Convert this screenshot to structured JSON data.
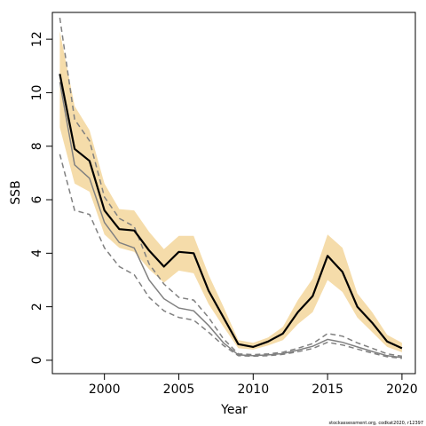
{
  "chart_data": {
    "type": "line",
    "xlabel": "Year",
    "ylabel": "SSB",
    "xlim": [
      1996.5,
      2020.9
    ],
    "ylim": [
      -0.5,
      13.0
    ],
    "x_ticks": [
      2000,
      2005,
      2010,
      2015,
      2020
    ],
    "y_ticks": [
      0,
      2,
      4,
      6,
      8,
      10,
      12
    ],
    "legend": "none",
    "grid": false,
    "credit": "stockassessment.org, codkat2020, r12397",
    "x": [
      1997,
      1998,
      1999,
      2000,
      2001,
      2002,
      2003,
      2004,
      2005,
      2006,
      2007,
      2008,
      2009,
      2010,
      2011,
      2012,
      2013,
      2014,
      2015,
      2016,
      2017,
      2018,
      2019,
      2020
    ],
    "series": [
      {
        "role": "estimate",
        "values": [
          10.7,
          7.9,
          7.45,
          5.6,
          4.9,
          4.85,
          4.1,
          3.5,
          4.05,
          4.0,
          2.6,
          1.6,
          0.6,
          0.5,
          0.7,
          1.0,
          1.8,
          2.4,
          3.9,
          3.3,
          2.0,
          1.4,
          0.7,
          0.45
        ],
        "lower": [
          8.7,
          6.6,
          6.3,
          4.7,
          4.2,
          4.05,
          3.4,
          2.9,
          3.35,
          3.25,
          2.1,
          1.25,
          0.45,
          0.4,
          0.55,
          0.75,
          1.35,
          1.8,
          3.0,
          2.55,
          1.6,
          1.05,
          0.5,
          0.3
        ],
        "upper": [
          12.3,
          9.5,
          8.6,
          6.6,
          5.65,
          5.6,
          4.8,
          4.15,
          4.65,
          4.65,
          3.2,
          2.0,
          0.75,
          0.65,
          0.85,
          1.25,
          2.25,
          3.05,
          4.7,
          4.2,
          2.5,
          1.8,
          0.95,
          0.65
        ],
        "color": "#000000",
        "band_color": "#f5dcaa"
      },
      {
        "role": "reference",
        "values": [
          10.4,
          7.3,
          6.8,
          5.15,
          4.4,
          4.2,
          3.0,
          2.3,
          1.95,
          1.85,
          1.3,
          0.65,
          0.2,
          0.17,
          0.2,
          0.25,
          0.38,
          0.52,
          0.78,
          0.67,
          0.5,
          0.33,
          0.17,
          0.1
        ],
        "lower": [
          7.7,
          5.6,
          5.45,
          4.2,
          3.5,
          3.2,
          2.35,
          1.85,
          1.6,
          1.5,
          1.05,
          0.55,
          0.17,
          0.15,
          0.17,
          0.22,
          0.32,
          0.44,
          0.67,
          0.57,
          0.42,
          0.27,
          0.13,
          0.07
        ],
        "upper": [
          12.8,
          9.0,
          8.2,
          6.1,
          5.3,
          5.0,
          3.6,
          2.85,
          2.35,
          2.25,
          1.6,
          0.8,
          0.24,
          0.21,
          0.24,
          0.3,
          0.45,
          0.62,
          1.0,
          0.9,
          0.65,
          0.45,
          0.24,
          0.15
        ],
        "color": "#808080"
      }
    ]
  }
}
